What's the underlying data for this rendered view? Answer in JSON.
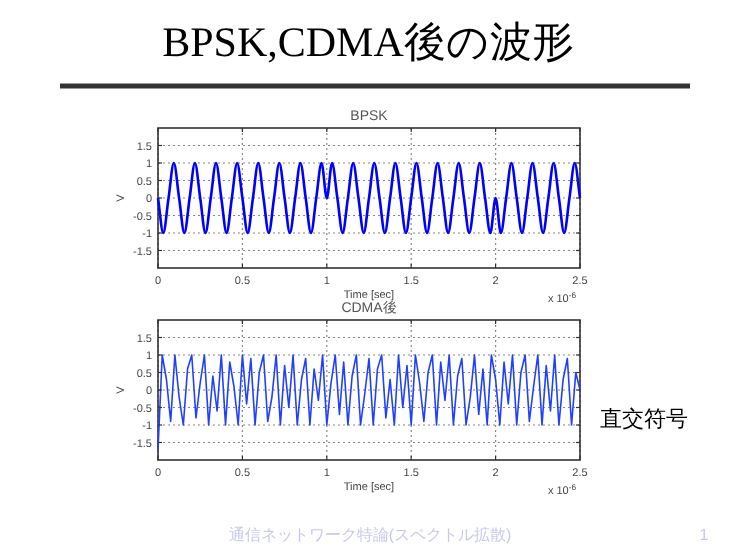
{
  "chart_data": [
    {
      "type": "line",
      "title": "BPSK",
      "xlabel": "Time [sec]",
      "ylabel": "V",
      "xlim": [
        0,
        2.5
      ],
      "ylim": [
        -2,
        2
      ],
      "xticks": [
        0,
        0.5,
        1,
        1.5,
        2,
        2.5
      ],
      "yticks": [
        -1.5,
        -1,
        -0.5,
        0,
        0.5,
        1,
        1.5
      ],
      "grid": true,
      "line_style": "solid",
      "marker": "none",
      "annotations": [
        "BPSK,CDMA後の波形",
        "x 10$^{-6}$"
      ],
      "series": [
        {
          "color": "#0000ff",
          "x": [
            0,
            0.03125,
            0.0625,
            0.09375,
            0.125,
            0.15625,
            0.1875,
            0.21875,
            0.25,
            0.28125,
            0.3125,
            0.34375,
            0.375,
            0.40625,
            0.4375,
            0.46875,
            0.5,
            0.53125,
            0.5625,
            0.59375,
            0.625,
            0.65625,
            0.6875,
            0.71875,
            0.75,
            0.78125,
            0.8125,
            0.84375,
            0.875,
            0.90625,
            0.9375,
            0.96875,
            1,
            1.03125,
            1.0625,
            1.09375,
            1.125,
            1.15625,
            1.1875,
            1.21875,
            1.25,
            1.28125,
            1.3125,
            1.34375,
            1.375,
            1.40625,
            1.4375,
            1.46875,
            1.5,
            1.53125,
            1.5625,
            1.59375,
            1.625,
            1.65625,
            1.6875,
            1.71875,
            1.75,
            1.78125,
            1.8125,
            1.84375,
            1.875,
            1.90625,
            1.9375,
            1.96875,
            2,
            2.03125,
            2.0625,
            2.09375,
            2.125,
            2.15625,
            2.1875,
            2.21875,
            2.25,
            2.28125,
            2.3125,
            2.34375,
            2.375,
            2.40625,
            2.4375,
            2.46875,
            2.5
          ],
          "values": [
            0,
            -1,
            0,
            1,
            0,
            -1,
            0,
            1,
            0,
            -1,
            0,
            1,
            0,
            -1,
            0,
            1,
            0,
            -1,
            0,
            1,
            0,
            -1,
            0,
            1,
            0,
            -1,
            0,
            1,
            0,
            -1,
            0,
            1,
            0,
            1,
            0,
            -1,
            0,
            1,
            0,
            -1,
            0,
            1,
            0,
            -1,
            0,
            1,
            0,
            -1,
            0,
            1,
            0,
            -1,
            0,
            1,
            0,
            -1,
            0,
            1,
            0,
            -1,
            0,
            1,
            0,
            -1,
            0,
            -1,
            0,
            1,
            0,
            -1,
            0,
            1,
            0,
            -1,
            0,
            1,
            0,
            -1,
            0,
            1,
            0
          ]
        }
      ]
    },
    {
      "type": "line",
      "title": "CDMA後",
      "xlabel": "Time [sec]",
      "ylabel": "V",
      "xlim": [
        0,
        2.5
      ],
      "ylim": [
        -2,
        2
      ],
      "xticks": [
        0,
        0.5,
        1,
        1.5,
        2,
        2.5
      ],
      "yticks": [
        -1.5,
        -1,
        -0.5,
        0,
        0.5,
        1,
        1.5
      ],
      "grid": true,
      "line_style": "solid",
      "marker": "none",
      "annotations": [
        "x 10$^{-6}$",
        "直交符号",
        "通信ネットワーク特論(スペクトル拡散)",
        "1"
      ],
      "series": [
        {
          "color": "#2040ff",
          "x": [
            0,
            0.025,
            0.05,
            0.075,
            0.1,
            0.125,
            0.15,
            0.175,
            0.2,
            0.225,
            0.25,
            0.275,
            0.3,
            0.325,
            0.35,
            0.375,
            0.4,
            0.425,
            0.45,
            0.475,
            0.5,
            0.525,
            0.55,
            0.575,
            0.6,
            0.625,
            0.65,
            0.675,
            0.7,
            0.725,
            0.75,
            0.775,
            0.8,
            0.825,
            0.85,
            0.875,
            0.9,
            0.925,
            0.95,
            0.975,
            1,
            1.025,
            1.05,
            1.075,
            1.1,
            1.125,
            1.15,
            1.175,
            1.2,
            1.225,
            1.25,
            1.275,
            1.3,
            1.325,
            1.35,
            1.375,
            1.4,
            1.425,
            1.45,
            1.475,
            1.5,
            1.525,
            1.55,
            1.575,
            1.6,
            1.625,
            1.65,
            1.675,
            1.7,
            1.725,
            1.75,
            1.775,
            1.8,
            1.825,
            1.85,
            1.875,
            1.9,
            1.925,
            1.95,
            1.975,
            2,
            2.025,
            2.05,
            2.075,
            2.1,
            2.125,
            2.15,
            2.175,
            2.2,
            2.225,
            2.25,
            2.275,
            2.3,
            2.325,
            2.35,
            2.375,
            2.4,
            2.425,
            2.45,
            2.475,
            2.5
          ],
          "values": [
            -1.7,
            1,
            0.3,
            -0.9,
            1,
            -0.2,
            -1,
            0.6,
            1,
            -0.8,
            0.2,
            1,
            -1,
            0.4,
            -0.6,
            1,
            -1,
            0.8,
            0.1,
            -1,
            1,
            -0.4,
            0.9,
            -1,
            0.5,
            1,
            -0.9,
            -0.2,
            1,
            -1,
            0.7,
            -0.5,
            1,
            -1,
            0.3,
            0.9,
            -1,
            0.6,
            -0.3,
            1,
            -1,
            0.2,
            1,
            -0.7,
            0.8,
            -1,
            0.4,
            1,
            -1,
            -0.1,
            0.9,
            -1,
            0.6,
            1,
            -0.8,
            0.3,
            -1,
            1,
            -0.5,
            0.7,
            -1,
            1,
            0.2,
            -0.9,
            0.5,
            1,
            -1,
            0.8,
            -0.3,
            1,
            -1,
            0.4,
            0.9,
            -1,
            -0.2,
            1,
            -0.7,
            0.6,
            -1,
            1,
            0.3,
            -1,
            0.8,
            -0.4,
            1,
            -1,
            0.5,
            1,
            -0.9,
            0.1,
            1,
            -1,
            0.7,
            -0.6,
            1,
            -1,
            0.3,
            0.9,
            -1,
            0.5,
            0
          ]
        }
      ]
    }
  ]
}
